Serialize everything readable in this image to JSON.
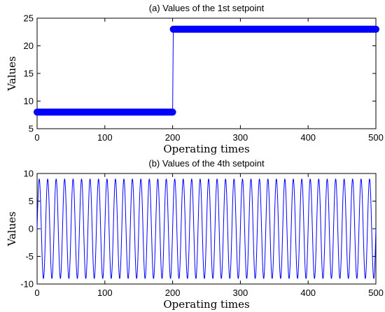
{
  "chart_data": [
    {
      "type": "line",
      "title": "(a) Values of the 1st setpoint",
      "xlabel": "Operating times",
      "ylabel": "Values",
      "xlim": [
        0,
        500
      ],
      "ylim": [
        5,
        25
      ],
      "xticks": [
        0,
        100,
        200,
        300,
        400,
        500
      ],
      "yticks": [
        5,
        10,
        15,
        20,
        25
      ],
      "grid": false,
      "color": "#0000ff",
      "markers": true,
      "series": [
        {
          "x": [
            0,
            200,
            201,
            500
          ],
          "values": [
            8,
            8,
            23,
            23
          ]
        }
      ]
    },
    {
      "type": "line",
      "title": "(b) Values of the 4th setpoint",
      "xlabel": "Operating times",
      "ylabel": "Values",
      "xlim": [
        0,
        500
      ],
      "ylim": [
        -10,
        10
      ],
      "xticks": [
        0,
        100,
        200,
        300,
        400,
        500
      ],
      "yticks": [
        -10,
        -5,
        0,
        5,
        10
      ],
      "grid": false,
      "color": "#0000ff",
      "markers": false,
      "series": [
        {
          "function": "9*sin(2*pi*x/12.5)",
          "x_range": [
            0,
            500
          ],
          "amplitude": 9,
          "period": 12.5
        }
      ]
    }
  ]
}
